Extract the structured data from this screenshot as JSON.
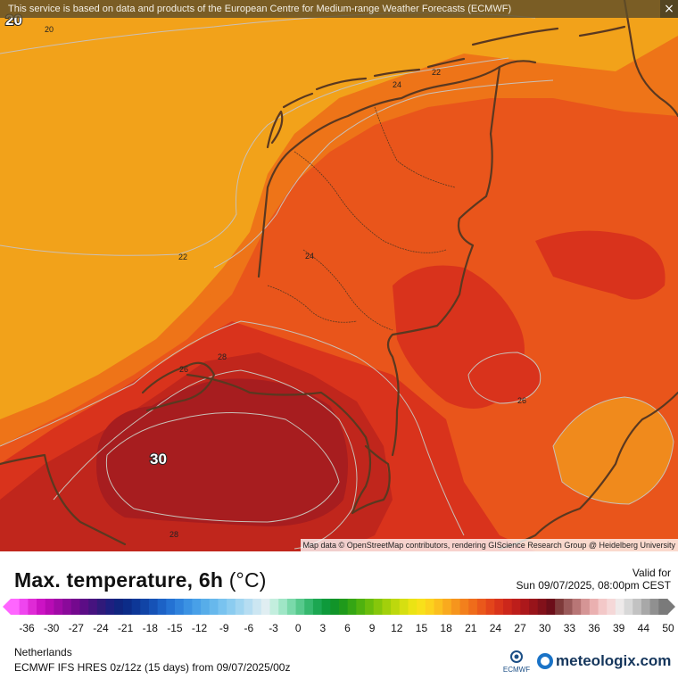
{
  "banner": {
    "text": "This service is based on data and products of the European Centre for Medium-range Weather Forecasts (ECMWF)",
    "close_glyph": "×"
  },
  "map": {
    "attribution": "Map data © OpenStreetMap contributors, rendering GIScience Research Group @ Heidelberg University",
    "contour_labels": [
      {
        "text": "20",
        "bold": true
      },
      {
        "text": "20",
        "bold": false
      },
      {
        "text": "22",
        "bold": false
      },
      {
        "text": "24",
        "bold": false
      },
      {
        "text": "22",
        "bold": false
      },
      {
        "text": "24",
        "bold": false
      },
      {
        "text": "28",
        "bold": false
      },
      {
        "text": "26",
        "bold": false
      },
      {
        "text": "30",
        "bold": true
      },
      {
        "text": "28",
        "bold": false
      },
      {
        "text": "26",
        "bold": false
      }
    ],
    "colors": {
      "sea_north": "#f2a21a",
      "land_low": "#ee7418",
      "land_mid": "#e9551b",
      "land_warm": "#d9331c",
      "land_hot": "#c0261c",
      "land_hottest": "#a71d1f",
      "pocket_cool": "#f08a1c",
      "border": "#5a3820",
      "isotherm": "#c9c0b8"
    }
  },
  "legend": {
    "title": "Max. temperature, 6h",
    "unit": "(°C)",
    "valid_label": "Valid for",
    "valid_time": "Sun 09/07/2025, 08:00pm CEST",
    "ticks": [
      "-36",
      "-30",
      "-27",
      "-24",
      "-21",
      "-18",
      "-15",
      "-12",
      "-9",
      "-6",
      "-3",
      "0",
      "3",
      "6",
      "9",
      "12",
      "15",
      "18",
      "21",
      "24",
      "27",
      "30",
      "33",
      "36",
      "39",
      "44",
      "50"
    ],
    "bin_colors": [
      "#ff66ff",
      "#ef45ef",
      "#df2ad6",
      "#cc13c4",
      "#b80bb4",
      "#a00aa6",
      "#8a0a9a",
      "#74098e",
      "#5c0d86",
      "#46137f",
      "#301a7a",
      "#1e1f80",
      "#10257f",
      "#0c2c88",
      "#0d3797",
      "#1144a6",
      "#1652b6",
      "#1c62c6",
      "#2472d3",
      "#2f82dc",
      "#3b92e3",
      "#48a0e8",
      "#57ade9",
      "#67b8ec",
      "#79c3ef",
      "#8bccf0",
      "#a0d5f1",
      "#b6ddf2",
      "#cce6f2",
      "#e0eef2",
      "#c3eede",
      "#9fe6c6",
      "#7ad9aa",
      "#57c98c",
      "#36b86e",
      "#1ca752",
      "#0e9a3b",
      "#119429",
      "#1f9a1b",
      "#35a614",
      "#4fb20f",
      "#6abd0c",
      "#86c70b",
      "#a2d00b",
      "#bdd80d",
      "#d6df11",
      "#ebe314",
      "#f8e01a",
      "#fcd21d",
      "#fbbf1e",
      "#f9aa1e",
      "#f6951d",
      "#f3801c",
      "#ef6c1b",
      "#ea581b",
      "#e3451b",
      "#d9341b",
      "#cc271b",
      "#bd1e1b",
      "#ac181b",
      "#98141a",
      "#82111a",
      "#6c0e19",
      "#7e3a3a",
      "#9a5a5a",
      "#b87676",
      "#d59595",
      "#eab0b0",
      "#f3c8c8",
      "#f5d8d8",
      "#eeeaea",
      "#d8d8d8",
      "#c2c2c2",
      "#a8a8a8",
      "#909090",
      "#7a7a7a"
    ]
  },
  "footer": {
    "location": "Netherlands",
    "model": "ECMWF IFS HRES 0z/12z (15 days) from 09/07/2025/00z",
    "ecmwf_logo_text": "ECMWF",
    "brand": "meteologix.com"
  }
}
